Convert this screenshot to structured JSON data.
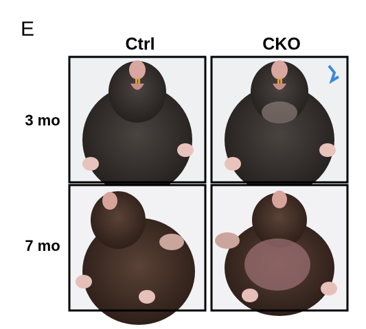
{
  "panel": {
    "label": "E",
    "columns": [
      "Ctrl",
      "CKO"
    ],
    "rows": [
      "3 mo",
      "7 mo"
    ]
  }
}
